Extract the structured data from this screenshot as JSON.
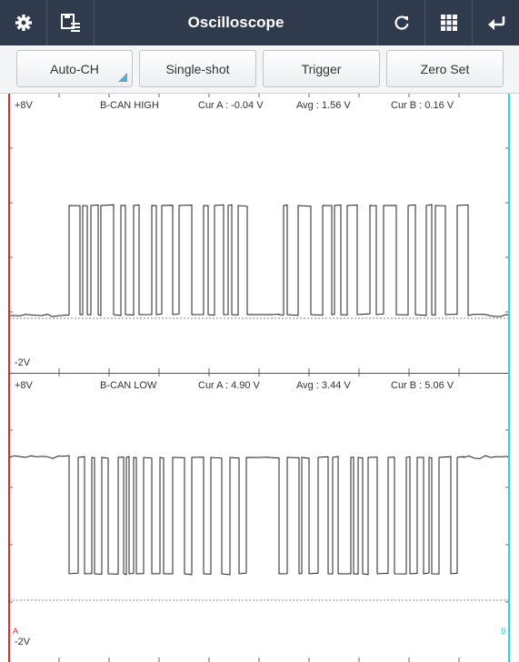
{
  "header": {
    "title": "Oscilloscope",
    "left_icons": [
      "gear-icon",
      "save-list-icon"
    ],
    "right_icons": [
      "refresh-icon",
      "grid-icon",
      "back-icon"
    ]
  },
  "toolbar": {
    "buttons": [
      {
        "label": "Auto-CH"
      },
      {
        "label": "Single-shot"
      },
      {
        "label": "Trigger"
      },
      {
        "label": "Zero Set"
      }
    ]
  },
  "channels": [
    {
      "top_scale": "+8V",
      "bottom_scale": "-2V",
      "name": "B-CAN HIGH",
      "cur_a": "Cur A : -0.04 V",
      "avg": "Avg : 1.56 V",
      "cur_b": "Cur B : 0.16 V"
    },
    {
      "top_scale": "+8V",
      "bottom_scale": "-2V",
      "name": "B-CAN LOW",
      "cur_a": "Cur A : 4.90 V",
      "avg": "Avg : 3.44 V",
      "cur_b": "Cur B : 5.06 V"
    }
  ],
  "cursor_labels": {
    "a": "A",
    "b": "B"
  },
  "colors": {
    "header_bg": "#2f3b4c",
    "cursor_a": "#e02a2a",
    "cursor_b": "#27d4df",
    "accent": "#5aa7d8"
  }
}
